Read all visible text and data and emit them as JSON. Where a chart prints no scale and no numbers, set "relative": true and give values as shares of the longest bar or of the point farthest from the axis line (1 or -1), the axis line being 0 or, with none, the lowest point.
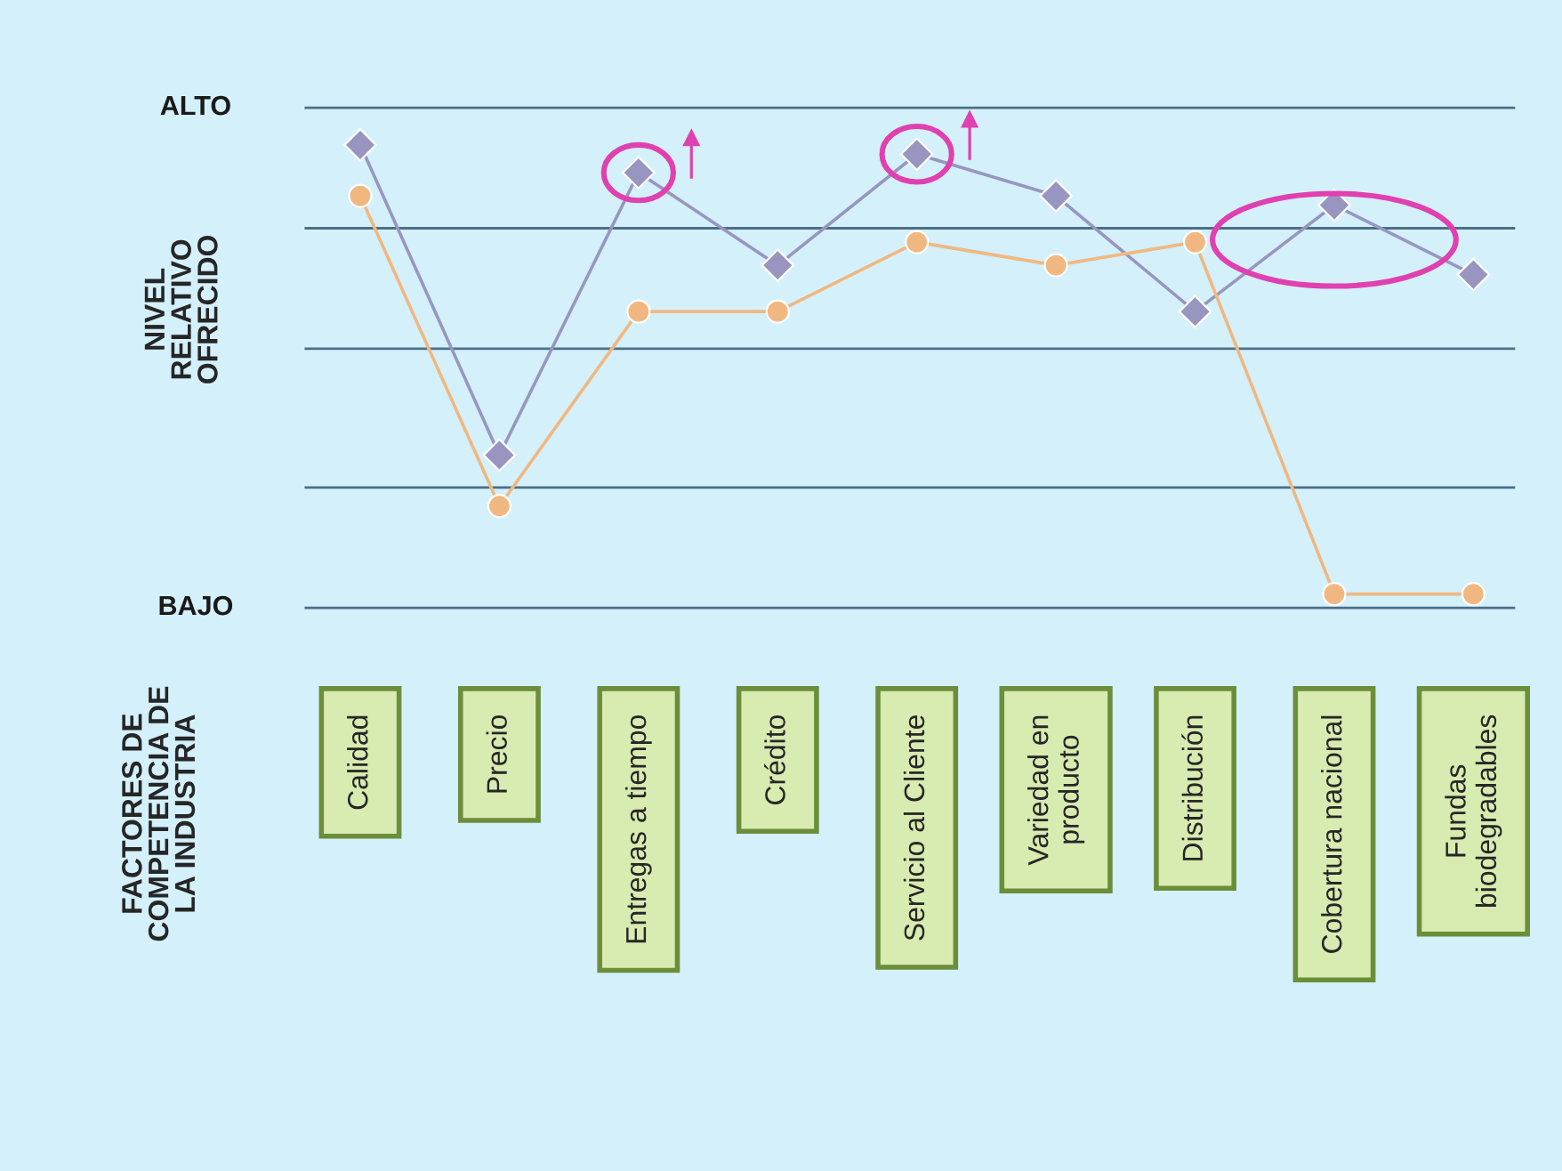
{
  "chart_data": {
    "type": "line",
    "relative": true,
    "ylabel": "NIVEL\nRELATIVO\nOFRECIDO",
    "annotations": [
      "FACTORES DE\nCOMPETENCIA DE\nLA INDUSTRIA"
    ],
    "categories": [
      "Calidad",
      "Precio",
      "Entregas a tiempo",
      "Crédito",
      "Servicio al Cliente",
      "Variedad en\nproducto",
      "Distribución",
      "Cobertura nacional",
      "Fundas\nbiodegradables"
    ],
    "series": [
      {
        "color": "#9896c0",
        "marker": "diamond",
        "values": [
          1.0,
          0.33,
          0.94,
          0.74,
          0.98,
          0.89,
          0.64,
          0.87,
          0.72
        ]
      },
      {
        "color": "#f0b880",
        "marker": "circle",
        "values": [
          0.89,
          0.22,
          0.64,
          0.64,
          0.79,
          0.74,
          0.79,
          0.03,
          0.03
        ]
      }
    ],
    "ref_lines": [
      {
        "axis": "y",
        "value": 1.08,
        "label": "ALTO",
        "color": "#4a6f8a"
      },
      {
        "axis": "y",
        "value": 0.82,
        "label": null,
        "color": "#4a6f8a"
      },
      {
        "axis": "y",
        "value": 0.56,
        "label": null,
        "color": "#4a6f8a"
      },
      {
        "axis": "y",
        "value": 0.26,
        "label": null,
        "color": "#4a6f8a"
      },
      {
        "axis": "y",
        "value": 0,
        "label": "BAJO",
        "color": "#4a6f8a"
      }
    ],
    "grid": false,
    "legend": false,
    "line_style": "solid"
  }
}
